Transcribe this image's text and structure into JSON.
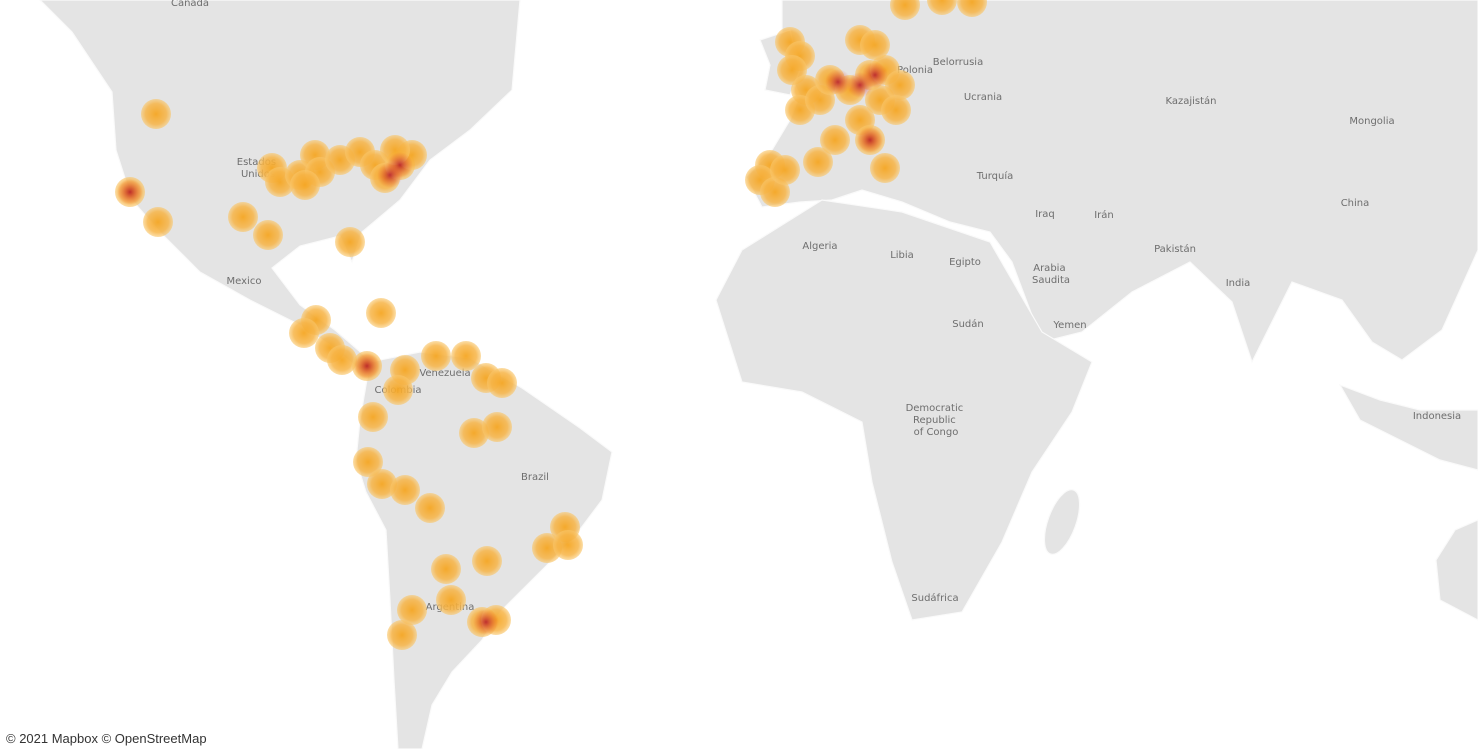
{
  "map": {
    "labels": [
      {
        "text": "Canada"
      },
      {
        "text": "Estados Unidos"
      },
      {
        "text": "Mexico"
      },
      {
        "text": "Venezuela"
      },
      {
        "text": "Colombia"
      },
      {
        "text": "Brazil"
      },
      {
        "text": "Argentina"
      },
      {
        "text": "Polonia"
      },
      {
        "text": "Belorrusia"
      },
      {
        "text": "Ucrania"
      },
      {
        "text": "Kazajistán"
      },
      {
        "text": "Mongolia"
      },
      {
        "text": "Turquía"
      },
      {
        "text": "Iraq"
      },
      {
        "text": "Irán"
      },
      {
        "text": "China"
      },
      {
        "text": "Pakistán"
      },
      {
        "text": "India"
      },
      {
        "text": "Arabia Saudita"
      },
      {
        "text": "Yemen"
      },
      {
        "text": "Algeria"
      },
      {
        "text": "Libia"
      },
      {
        "text": "Egipto"
      },
      {
        "text": "Sudán"
      },
      {
        "text": "Democratic Republic of Congo"
      },
      {
        "text": "Sudáfrica"
      },
      {
        "text": "Indonesia"
      }
    ]
  },
  "attribution": "© 2021 Mapbox © OpenStreetMap"
}
